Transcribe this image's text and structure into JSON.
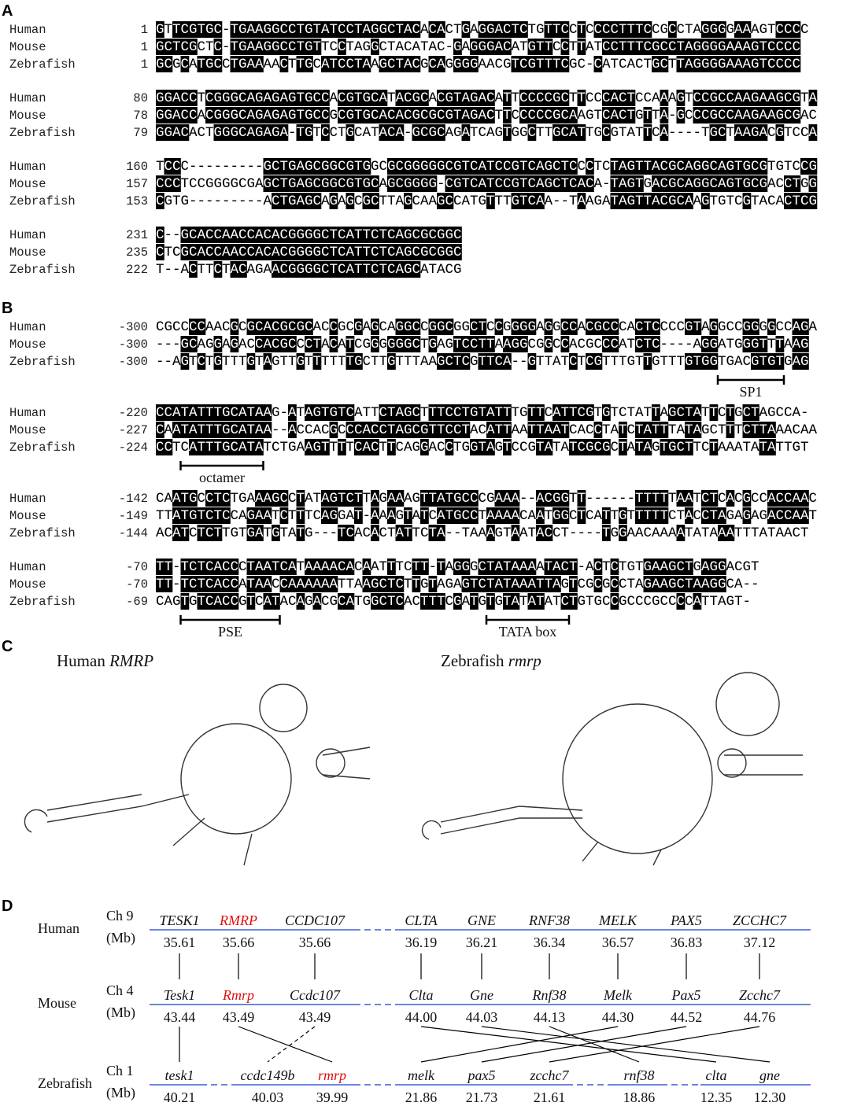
{
  "panel_a": {
    "label": "A",
    "blocks": [
      {
        "rows": [
          {
            "name": "Human",
            "start": "1",
            "seq": "GTTCGTGC-TGAAGGCCTGTATCCTAGGCTACACACTGAGGACTCTGTTCCTCCCCTTTCCGCCTAGGGGAAAGTCCCC"
          },
          {
            "name": "Mouse",
            "start": "1",
            "seq": "GCTCGCTC-TGAAGGCCTGTTCCTAGGCTACATAC-GAGGGACATGTTCCTTATCCTTTCGCCTAGGGGAAAGTCCCC"
          },
          {
            "name": "Zebrafish",
            "start": "1",
            "seq": "GCGCATGCCTGAAAACTTGCATCCTAAGCTACGCAGGGGAACGTCGTTTCGC-CATCACTGCTTAGGGGAAAGTCCCC"
          }
        ]
      },
      {
        "rows": [
          {
            "name": "Human",
            "start": "80",
            "seq": "GGACCTCGGGCAGAGAGTGCCACGTGCATACGCACGTAGACATTCCCCGCTTCCCACTCCAAAGTCCGCCAAGAAGCGTA"
          },
          {
            "name": "Mouse",
            "start": "78",
            "seq": "GGACCACGGGCAGAGAGTGCCGCGTGCACACGCGCGTAGACTTCCCCCGCAAGTCACTGTTA-GCCCGCCAAGAAGCGAC"
          },
          {
            "name": "Zebrafish",
            "start": "79",
            "seq": "GGACACTGGGCAGAGA-TGTCCTGCATACA-GCGCAGATCAGTGGCTTGCATTGCGTATTCA----TGCTAAGACGTCCA"
          }
        ]
      },
      {
        "rows": [
          {
            "name": "Human",
            "start": "160",
            "seq": "TCCC---------GCTGAGCGGCGTGGCGCGGGGGCGTCATCCGTCAGCTCCCTCTAGTTACGCAGGCAGTGCGTGTCCG"
          },
          {
            "name": "Mouse",
            "start": "157",
            "seq": "CCCTCCGGGGCGAGCTGAGCGGCGTGCAGCGGGG-CGTCATCCGTCAGCTCACA-TAGTGACGCAGGCAGTGCGACCTGG"
          },
          {
            "name": "Zebrafish",
            "start": "153",
            "seq": "CGTG---------ACTGAGCAGAGCGCTTAGCAAGCCATGTTTGTCAA--TAAGATAGTTACGCAAGTGTCGTACACTCG"
          }
        ]
      },
      {
        "rows": [
          {
            "name": "Human",
            "start": "231",
            "seq": "C--GCACCAACCACACGGGGCTCATTCTCAGCGCGGC"
          },
          {
            "name": "Mouse",
            "start": "235",
            "seq": "CTCGCACCAACCACACGGGGCTCATTCTCAGCGCGGC"
          },
          {
            "name": "Zebrafish",
            "start": "222",
            "seq": "T--ACTTCTACAGAACGGGGCTCATTCTCAGCATACG"
          }
        ]
      }
    ]
  },
  "panel_b": {
    "label": "B",
    "blocks": [
      {
        "rows": [
          {
            "name": "Human",
            "start": "-300",
            "seq": "CGCCCCAACGCGCACGCGCACCGCGAGCAGGCCGGCGGCTCCGGGGAGGCCACGCCCACTCCCCGTAGGCCGGGGCCAGA"
          },
          {
            "name": "Mouse",
            "start": "-300",
            "seq": "---GCAGGAGACCACGCCCTACATCGGGGGGCTGAGTCCTTAAGGCGGCCACGCCCATCTC----AGGATGGGTTTAAG"
          },
          {
            "name": "Zebrafish",
            "start": "-300",
            "seq": "--AGTCTGTTTGTAGTTGTTTTTTGCTTGTTTAAGCTCGTTCA--GTTATCTCGTTTGTTGTTTGTGGTGACGTGTGAG"
          }
        ],
        "annotations": [
          "SP1"
        ]
      },
      {
        "rows": [
          {
            "name": "Human",
            "start": "-220",
            "seq": "CCATATTTGCATAAG-ATAGTGTCATTCTAGCTTTCCTGTATTTGTTCATTCGTGTCTATTAGCTATTCTGCTAGCCA-"
          },
          {
            "name": "Mouse",
            "start": "-227",
            "seq": "CAATATTTGCATAA--ACCACGCCCACCTAGCGTTCCTACATTAATTAATCACCTATCTATTTATAGCTTTCTTAAACAA"
          },
          {
            "name": "Zebrafish",
            "start": "-224",
            "seq": "CCTCATTTGCATATCTGAAGTTTTCACTTCAGGACCTGGTAGTCCGTATATCGCGCTATAGTGCTTCTAAATATATTGT"
          }
        ],
        "annotations": [
          "octamer"
        ]
      },
      {
        "rows": [
          {
            "name": "Human",
            "start": "-142",
            "seq": "CAATGCCTCTGAAAGCCTATAGTCTTAGAAAGTTATGCCCGAAA--ACGGTT------TTTTTAATCTCACGCCACCAAC"
          },
          {
            "name": "Mouse",
            "start": "-149",
            "seq": "TTATGTCTCCAGAATCTTTCAGGAT-AAAGTATCATGCCTAAAACAATGGCTCATTGTTTTTCTACCTAGAGAGACCAAT"
          },
          {
            "name": "Zebrafish",
            "start": "-144",
            "seq": "ACATCTCTTGTGATGTATG---TCACACTATTCTA--TAAAGTAATACCT----TGGAACAAAATATAAATTTATAACT"
          }
        ],
        "annotations": []
      },
      {
        "rows": [
          {
            "name": "Human",
            "start": "-70",
            "seq": "TT-TCTCACCCTAATCATAAAACACAATTTCTT-TAGGGCTATAAAATACT-ACTCTGTGAAGCTGAGGACGT"
          },
          {
            "name": "Mouse",
            "start": "-70",
            "seq": "TT-TCTCACCATAACCAAAAAATTAAGCTCTTGTAGAGTCTATAAATTAGTCGCGCCTAGAAGCTAAGGCA--"
          },
          {
            "name": "Zebrafish",
            "start": "-69",
            "seq": "CAGTGTCACCGTCATACAGACGCATGGCTCACTTTCGATGTGTATATATCTGTGCCGCCCGCCCCATTAGT-"
          }
        ],
        "annotations": [
          "PSE",
          "TATA box"
        ]
      }
    ]
  },
  "panel_c": {
    "label": "C",
    "titles": [
      {
        "name": "Human",
        "gene": "RMRP"
      },
      {
        "name": "Zebrafish",
        "gene": "rmrp"
      }
    ]
  },
  "panel_d": {
    "label": "D",
    "species": [
      {
        "name": "Human",
        "chrom": "Ch 9",
        "unit": "(Mb)",
        "genes": [
          {
            "name": "TESK1",
            "pos": "35.61"
          },
          {
            "name": "RMRP",
            "pos": "35.66",
            "color": "#e01010"
          },
          {
            "name": "CCDC107",
            "pos": "35.66"
          },
          {
            "name": "CLTA",
            "pos": "36.19"
          },
          {
            "name": "GNE",
            "pos": "36.21"
          },
          {
            "name": "RNF38",
            "pos": "36.34"
          },
          {
            "name": "MELK",
            "pos": "36.57"
          },
          {
            "name": "PAX5",
            "pos": "36.83"
          },
          {
            "name": "ZCCHC7",
            "pos": "37.12"
          }
        ]
      },
      {
        "name": "Mouse",
        "chrom": "Ch 4",
        "unit": "(Mb)",
        "genes": [
          {
            "name": "Tesk1",
            "pos": "43.44"
          },
          {
            "name": "Rmrp",
            "pos": "43.49",
            "color": "#e01010"
          },
          {
            "name": "Ccdc107",
            "pos": "43.49"
          },
          {
            "name": "Clta",
            "pos": "44.00"
          },
          {
            "name": "Gne",
            "pos": "44.03"
          },
          {
            "name": "Rnf38",
            "pos": "44.13"
          },
          {
            "name": "Melk",
            "pos": "44.30"
          },
          {
            "name": "Pax5",
            "pos": "44.52"
          },
          {
            "name": "Zcchc7",
            "pos": "44.76"
          }
        ]
      },
      {
        "name": "Zebrafish",
        "chrom": "Ch 1",
        "unit": "(Mb)",
        "genes": [
          {
            "name": "tesk1",
            "pos": "40.21"
          },
          {
            "name": "ccdc149b",
            "pos": "40.03"
          },
          {
            "name": "rmrp",
            "pos": "39.99",
            "color": "#e01010"
          },
          {
            "name": "melk",
            "pos": "21.86"
          },
          {
            "name": "pax5",
            "pos": "21.73"
          },
          {
            "name": "zcchc7",
            "pos": "21.61"
          },
          {
            "name": "rnf38",
            "pos": "18.86"
          },
          {
            "name": "clta",
            "pos": "12.35"
          },
          {
            "name": "gne",
            "pos": "12.30"
          }
        ]
      }
    ]
  }
}
